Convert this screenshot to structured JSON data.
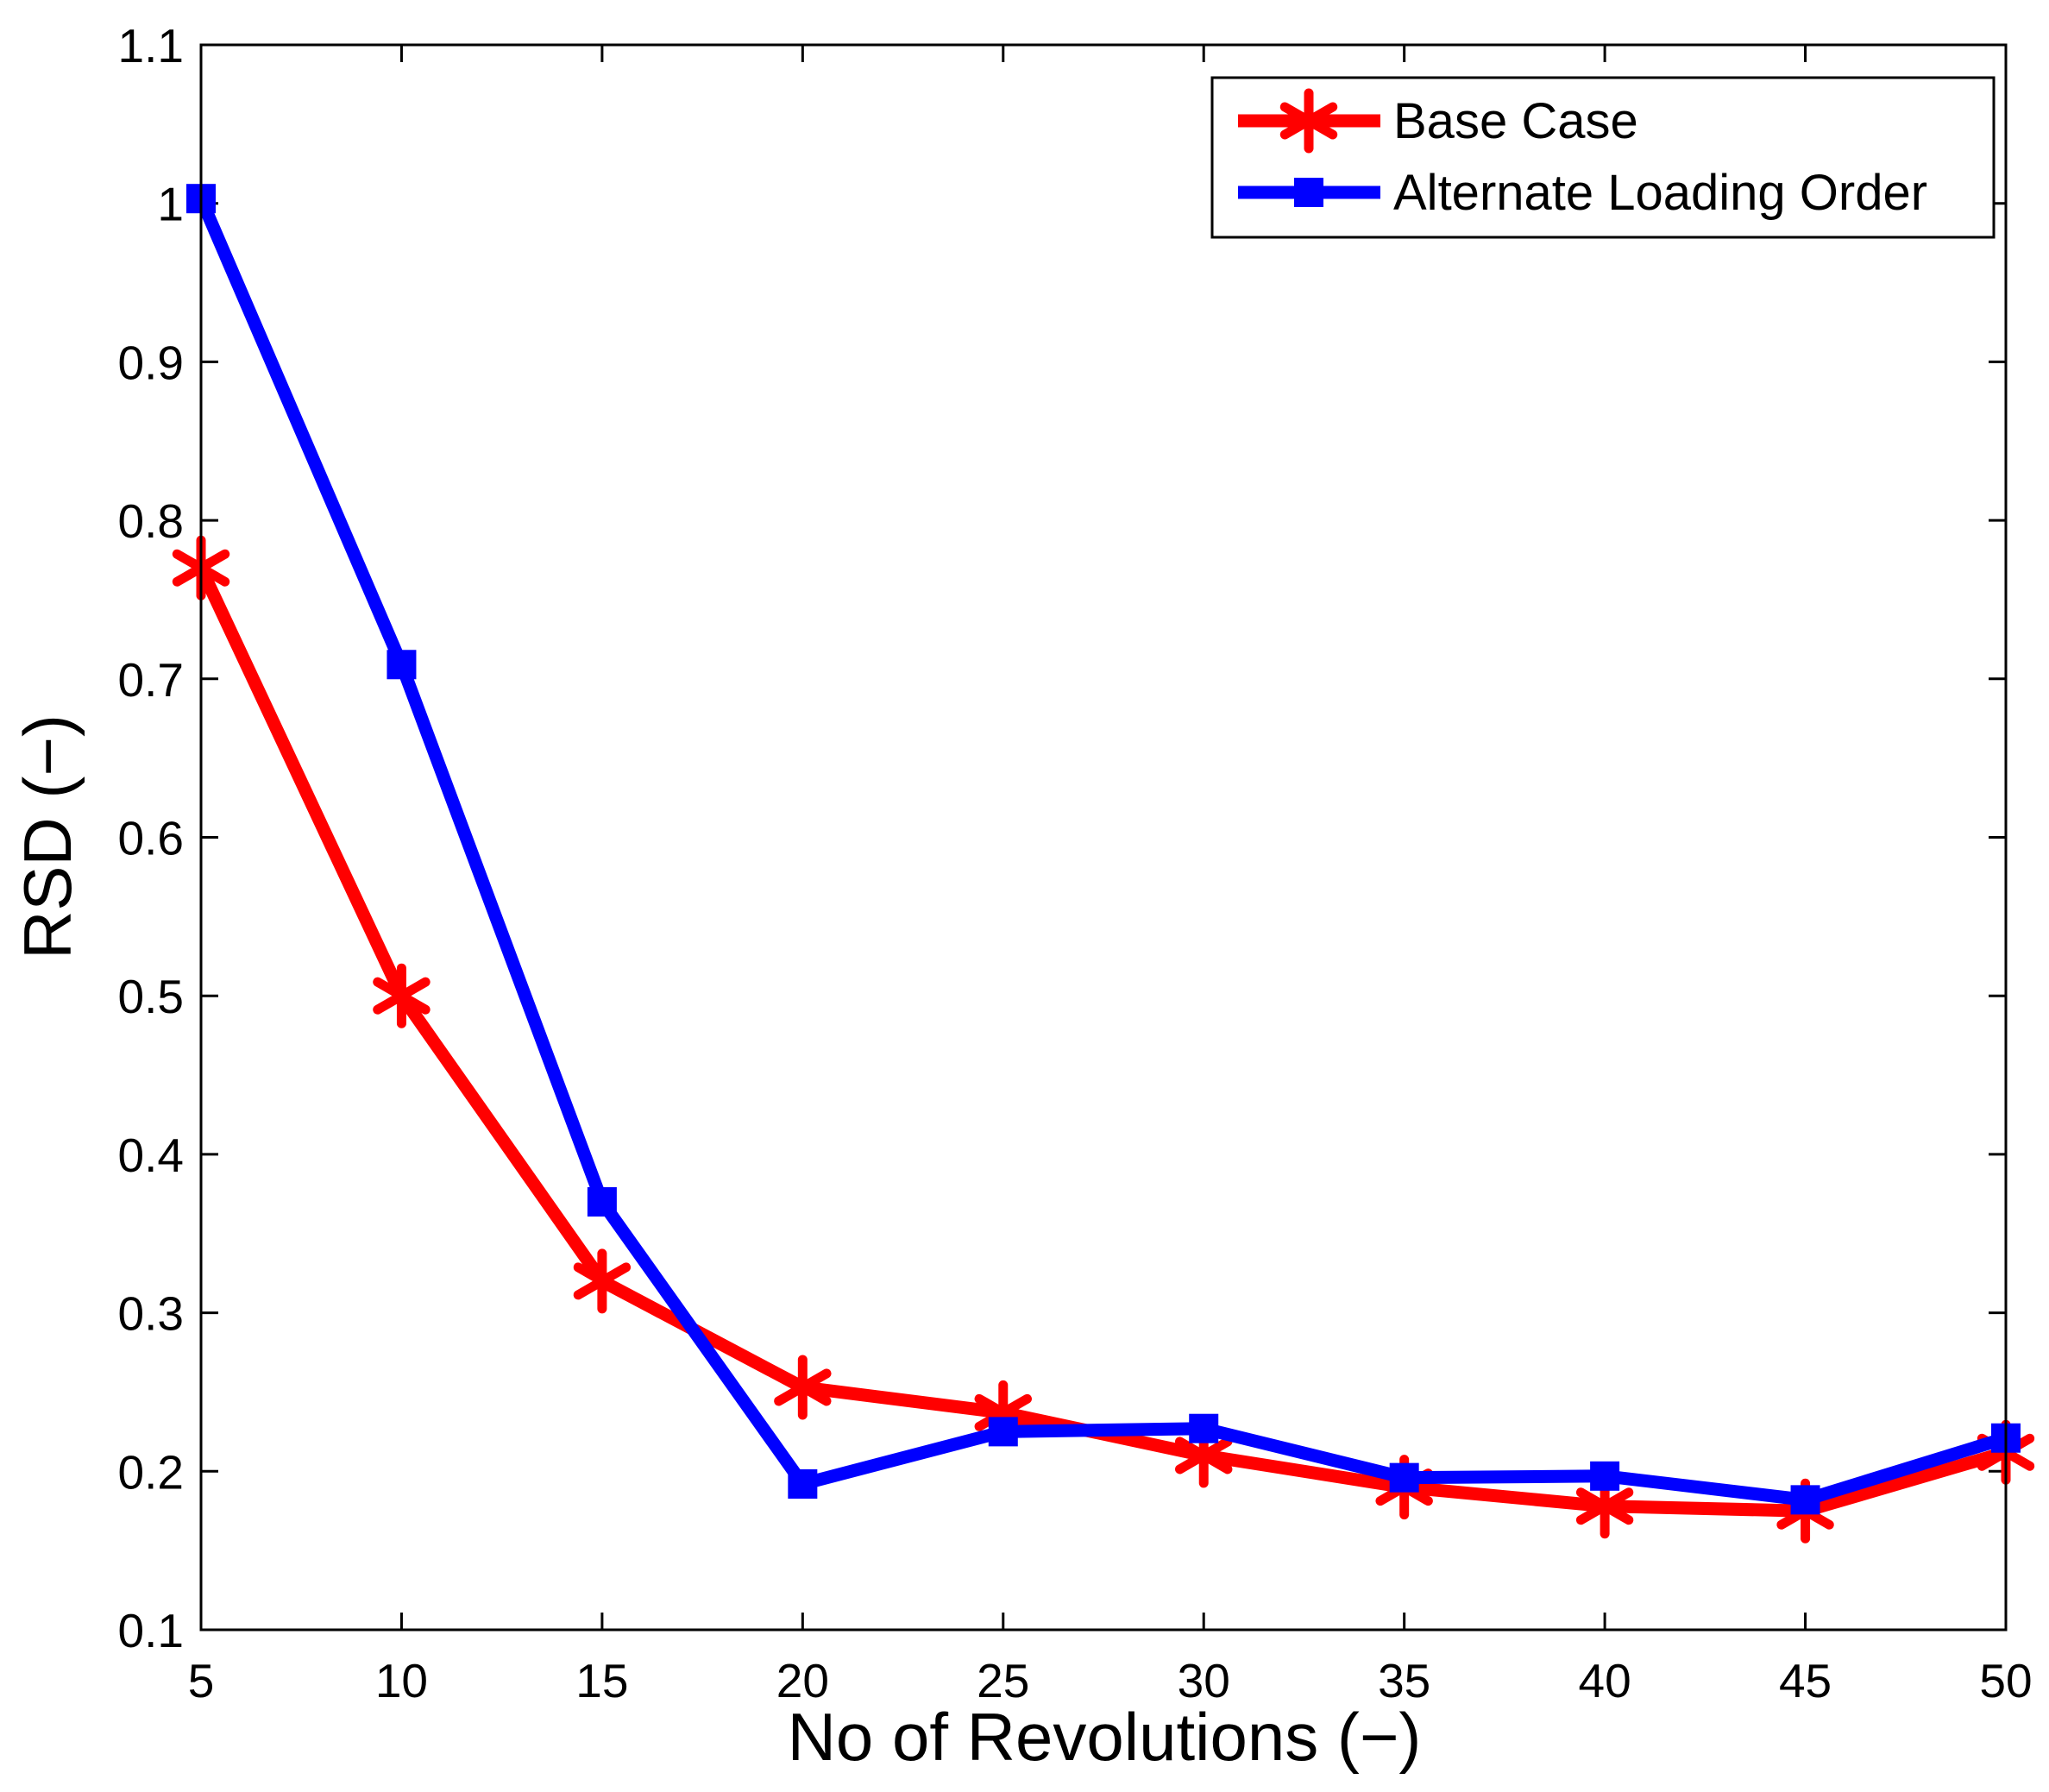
{
  "chart_data": {
    "type": "line",
    "title": "",
    "xlabel": "No of Revolutions (−)",
    "ylabel": "RSD (−)",
    "xlim": [
      5,
      50
    ],
    "ylim": [
      0.1,
      1.1
    ],
    "xticks": [
      5,
      10,
      15,
      20,
      25,
      30,
      35,
      40,
      45,
      50
    ],
    "xtick_labels": [
      "5",
      "10",
      "15",
      "20",
      "25",
      "30",
      "35",
      "40",
      "45",
      "50"
    ],
    "yticks": [
      0.1,
      0.2,
      0.3,
      0.4,
      0.5,
      0.6,
      0.7,
      0.8,
      0.9,
      1.0,
      1.1
    ],
    "ytick_labels": [
      "0.1",
      "0.2",
      "0.3",
      "0.4",
      "0.5",
      "0.6",
      "0.7",
      "0.8",
      "0.9",
      "1",
      "1.1"
    ],
    "grid": false,
    "legend_position": "top-right",
    "x": [
      5,
      10,
      15,
      20,
      25,
      30,
      35,
      40,
      45,
      50
    ],
    "series": [
      {
        "name": "Base Case",
        "color": "#ff0000",
        "marker": "asterisk",
        "values": [
          0.77,
          0.5,
          0.32,
          0.253,
          0.237,
          0.21,
          0.19,
          0.178,
          0.175,
          0.212
        ]
      },
      {
        "name": "Alternate Loading Order",
        "color": "#0000ff",
        "marker": "square",
        "values": [
          1.003,
          0.709,
          0.37,
          0.192,
          0.225,
          0.227,
          0.196,
          0.197,
          0.182,
          0.221
        ]
      }
    ]
  }
}
